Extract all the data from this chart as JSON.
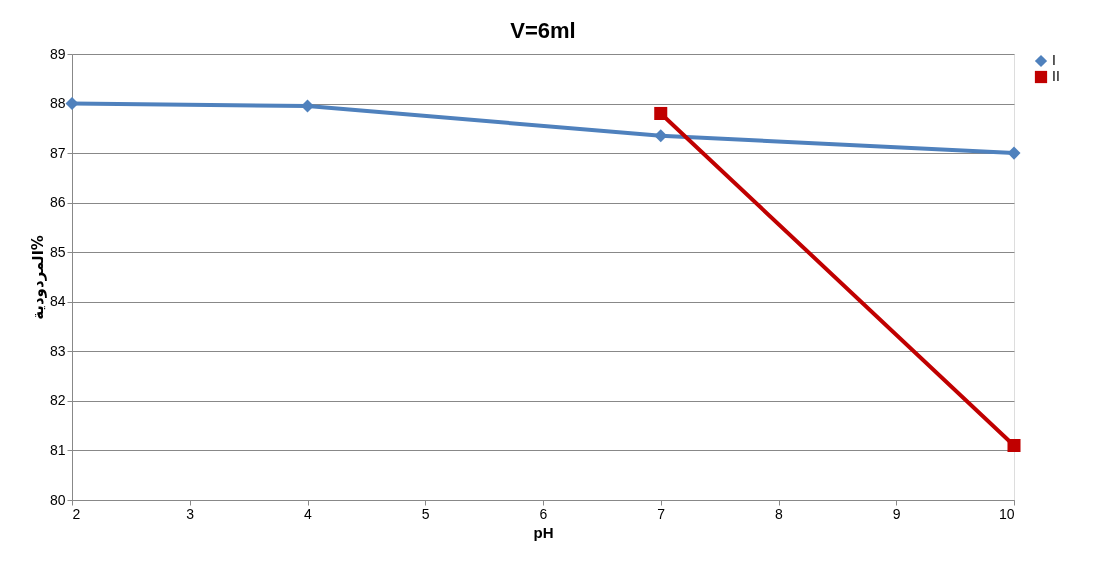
{
  "chart_data": {
    "type": "line",
    "title": "V=6ml",
    "xlabel": "pH",
    "ylabel": "المردودية%",
    "series": [
      {
        "name": "I",
        "color": "#4f81bd",
        "marker": "diamond",
        "x": [
          2,
          4,
          7,
          10
        ],
        "values": [
          88.0,
          87.95,
          87.35,
          87.0
        ]
      },
      {
        "name": "II",
        "color": "#c00000",
        "marker": "square",
        "x": [
          7,
          10
        ],
        "values": [
          87.8,
          81.1
        ]
      }
    ],
    "xlim": [
      2,
      10
    ],
    "xticks": [
      2,
      3,
      4,
      5,
      6,
      7,
      8,
      9,
      10
    ],
    "ylim": [
      80,
      89
    ],
    "yticks": [
      80,
      81,
      82,
      83,
      84,
      85,
      86,
      87,
      88,
      89
    ],
    "grid": "y",
    "legend": "right",
    "line_style": "solid"
  }
}
